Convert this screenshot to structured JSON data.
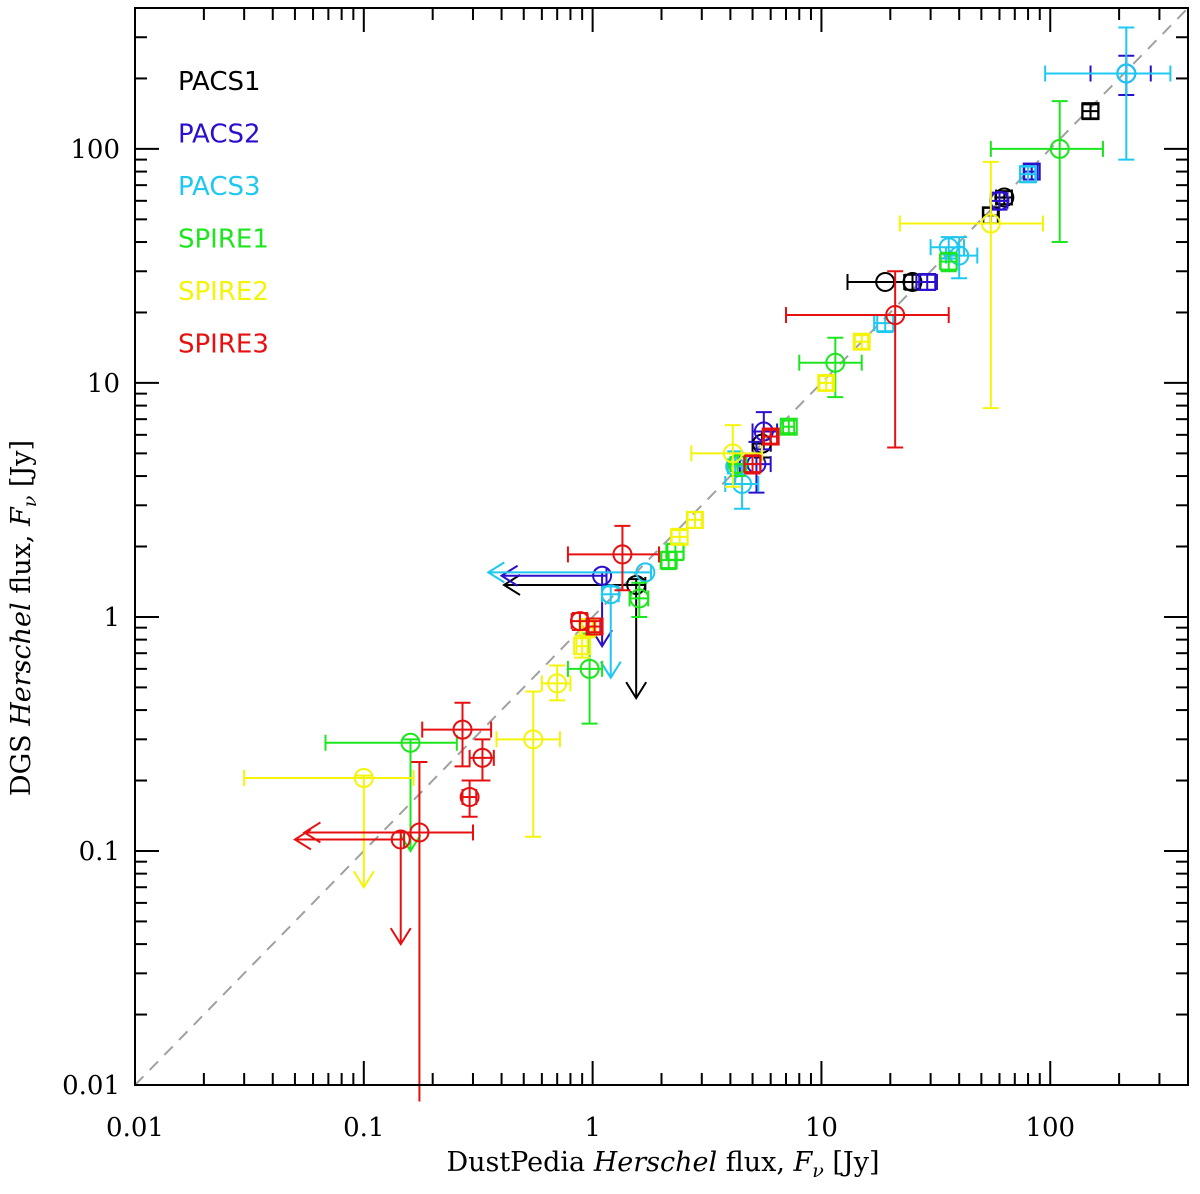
{
  "chart_data": {
    "type": "scatter",
    "xscale": "log",
    "yscale": "log",
    "xlim": [
      0.01,
      400
    ],
    "ylim": [
      0.01,
      400
    ],
    "xlabel": {
      "pre": "DustPedia ",
      "italic": "Herschel",
      "post": " flux, ",
      "symbol": "F",
      "sub": "ν",
      "unit": " [Jy]"
    },
    "ylabel": {
      "pre": "DGS ",
      "italic": "Herschel",
      "post": " flux, ",
      "symbol": "F",
      "sub": "ν",
      "unit": " [Jy]"
    },
    "x_ticks": [
      {
        "v": 0.01,
        "label": "0.01"
      },
      {
        "v": 0.1,
        "label": "0.1"
      },
      {
        "v": 1,
        "label": "1"
      },
      {
        "v": 10,
        "label": "10"
      },
      {
        "v": 100,
        "label": "100"
      }
    ],
    "y_ticks": [
      {
        "v": 0.01,
        "label": "0.01"
      },
      {
        "v": 0.1,
        "label": "0.1"
      },
      {
        "v": 1,
        "label": "1"
      },
      {
        "v": 10,
        "label": "10"
      },
      {
        "v": 100,
        "label": "100"
      }
    ],
    "one_to_one_line": {
      "color": "#a0a0a0",
      "style": "dashed"
    },
    "legend_position": "top-left",
    "series": [
      {
        "name": "PACS1",
        "color": "#000000",
        "points": [
          {
            "x": 150,
            "y": 145,
            "m": "s",
            "xe": [
              138,
              162
            ],
            "ye": [
              135,
              155
            ]
          },
          {
            "x": 63,
            "y": 62,
            "m": "c",
            "xe": [
              58,
              68
            ],
            "ye": [
              58,
              66
            ]
          },
          {
            "x": 55,
            "y": 52,
            "m": "s",
            "xe": [
              51,
              59
            ],
            "ye": [
              48,
              56
            ]
          },
          {
            "x": 25,
            "y": 27,
            "m": "c",
            "xe": [
              23,
              27
            ],
            "ye": [
              25,
              29
            ]
          },
          {
            "x": 19,
            "y": 27,
            "m": "c",
            "xe": [
              13,
              25
            ]
          },
          {
            "x": 1.55,
            "y": 1.37,
            "m": "c",
            "xe": [
              0.41,
              1.7
            ],
            "xul": true,
            "yul": true,
            "ye": [
              0.45,
              1.45
            ]
          },
          {
            "x": 5.5,
            "y": 5.5,
            "m": "c",
            "xe": [
              5,
              6
            ],
            "ye": [
              4.8,
              6.2
            ]
          }
        ]
      },
      {
        "name": "PACS2",
        "color": "#2a10cc",
        "points": [
          {
            "x": 215,
            "y": 210,
            "m": "c",
            "xe": [
              150,
              275
            ],
            "ye": [
              170,
              250
            ]
          },
          {
            "x": 83,
            "y": 80,
            "m": "s",
            "xe": [
              77,
              88
            ],
            "ye": [
              74,
              86
            ]
          },
          {
            "x": 60,
            "y": 60,
            "m": "c",
            "xe": [
              55,
              65
            ],
            "ye": [
              55,
              65
            ]
          },
          {
            "x": 29,
            "y": 27,
            "m": "s",
            "xe": [
              26,
              32
            ],
            "ye": [
              25,
              29
            ]
          },
          {
            "x": 1.1,
            "y": 1.5,
            "m": "c",
            "xe": [
              0.4,
              1.15
            ],
            "xul": true,
            "yul": true,
            "ye": [
              0.75,
              1.55
            ]
          },
          {
            "x": 5.6,
            "y": 6.2,
            "m": "c",
            "xe": [
              5,
              6.4
            ],
            "ye": [
              5.2,
              7.5
            ]
          },
          {
            "x": 5.2,
            "y": 4.5,
            "m": "c",
            "xe": [
              4.4,
              6
            ],
            "ye": [
              3.4,
              5.6
            ]
          }
        ]
      },
      {
        "name": "PACS3",
        "color": "#1ec8f0",
        "points": [
          {
            "x": 215,
            "y": 210,
            "m": "c",
            "xe": [
              95,
              335
            ],
            "ye": [
              90,
              330
            ]
          },
          {
            "x": 80,
            "y": 78,
            "m": "s",
            "xe": [
              74,
              86
            ],
            "ye": [
              72,
              84
            ]
          },
          {
            "x": 36,
            "y": 38,
            "m": "c",
            "xe": [
              30,
              42
            ],
            "ye": [
              34,
              42
            ]
          },
          {
            "x": 40,
            "y": 35,
            "m": "c",
            "xe": [
              35,
              48
            ],
            "ye": [
              28,
              42
            ]
          },
          {
            "x": 19,
            "y": 18,
            "m": "s",
            "xe": [
              17,
              21
            ],
            "ye": [
              16.5,
              19.5
            ]
          },
          {
            "x": 1.7,
            "y": 1.55,
            "m": "c",
            "xe": [
              0.35,
              1.8
            ],
            "xul": true
          },
          {
            "x": 1.2,
            "y": 1.25,
            "m": "c",
            "xe": [
              1.1,
              1.3
            ],
            "yul": true,
            "ye": [
              0.55,
              1.35
            ]
          },
          {
            "x": 4.5,
            "y": 3.7,
            "m": "c",
            "xe": [
              3.8,
              5.3
            ],
            "ye": [
              2.9,
              4.5
            ]
          },
          {
            "x": 4.2,
            "y": 4.4,
            "m": "c",
            "xe": [
              3.9,
              4.6
            ],
            "ye": [
              3.7,
              5.1
            ]
          }
        ]
      },
      {
        "name": "SPIRE1",
        "color": "#1ee61e",
        "points": [
          {
            "x": 110,
            "y": 100,
            "m": "c",
            "xe": [
              55,
              170
            ],
            "ye": [
              40,
              160
            ]
          },
          {
            "x": 36,
            "y": 33,
            "m": "s",
            "xe": [
              33,
              39
            ],
            "ye": [
              30,
              36
            ]
          },
          {
            "x": 11.5,
            "y": 12.2,
            "m": "c",
            "xe": [
              8,
              15
            ],
            "ye": [
              8.7,
              15.6
            ]
          },
          {
            "x": 7.2,
            "y": 6.5,
            "m": "s",
            "xe": [
              6.8,
              7.6
            ],
            "ye": [
              6.1,
              6.9
            ]
          },
          {
            "x": 2.3,
            "y": 1.9,
            "m": "s",
            "xe": [
              2.1,
              2.5
            ],
            "ye": [
              1.75,
              2.05
            ]
          },
          {
            "x": 2.15,
            "y": 1.75,
            "m": "s",
            "xe": [
              2,
              2.3
            ],
            "ye": [
              1.6,
              1.9
            ]
          },
          {
            "x": 1.6,
            "y": 1.2,
            "m": "c",
            "xe": [
              1.45,
              1.75
            ],
            "ye": [
              1,
              1.4
            ]
          },
          {
            "x": 0.97,
            "y": 0.6,
            "m": "c",
            "xe": [
              0.78,
              1.1
            ],
            "ye": [
              0.35,
              0.85
            ]
          },
          {
            "x": 0.16,
            "y": 0.29,
            "m": "c",
            "xe": [
              0.068,
              0.255
            ],
            "yul": true,
            "ye": [
              0.1,
              0.3
            ]
          },
          {
            "x": 4.3,
            "y": 4.5,
            "m": "c",
            "xe": [
              4,
              4.7
            ],
            "ye": [
              4,
              5
            ]
          }
        ]
      },
      {
        "name": "SPIRE2",
        "color": "#f4f40a",
        "points": [
          {
            "x": 55,
            "y": 48,
            "m": "c",
            "xe": [
              22,
              93
            ],
            "ye": [
              7.8,
              88
            ]
          },
          {
            "x": 15,
            "y": 15,
            "m": "s",
            "xe": [
              14,
              16
            ],
            "ye": [
              14,
              16
            ]
          },
          {
            "x": 10.5,
            "y": 10,
            "m": "s",
            "xe": [
              9.8,
              11.2
            ],
            "ye": [
              9.3,
              10.7
            ]
          },
          {
            "x": 2.8,
            "y": 2.6,
            "m": "s",
            "xe": [
              2.6,
              3
            ],
            "ye": [
              2.4,
              2.8
            ]
          },
          {
            "x": 2.4,
            "y": 2.2,
            "m": "s",
            "xe": [
              2.2,
              2.6
            ],
            "ye": [
              2.05,
              2.35
            ]
          },
          {
            "x": 4.1,
            "y": 5,
            "m": "c",
            "xe": [
              2.7,
              5.5
            ],
            "ye": [
              3.6,
              6.6
            ]
          },
          {
            "x": 0.9,
            "y": 0.75,
            "m": "s",
            "xe": [
              0.85,
              0.95
            ],
            "ye": [
              0.67,
              0.83
            ]
          },
          {
            "x": 0.95,
            "y": 0.9,
            "m": "s",
            "xe": [
              0.9,
              1
            ],
            "ye": [
              0.82,
              0.98
            ]
          },
          {
            "x": 0.7,
            "y": 0.52,
            "m": "c",
            "xe": [
              0.6,
              0.8
            ],
            "ye": [
              0.44,
              0.62
            ]
          },
          {
            "x": 0.55,
            "y": 0.3,
            "m": "c",
            "xe": [
              0.38,
              0.72
            ],
            "ye": [
              0.115,
              0.48
            ]
          },
          {
            "x": 0.1,
            "y": 0.205,
            "m": "c",
            "xe": [
              0.03,
              0.165
            ],
            "yul": true,
            "ye": [
              0.07,
              0.21
            ]
          }
        ]
      },
      {
        "name": "SPIRE3",
        "color": "#e61010",
        "points": [
          {
            "x": 21,
            "y": 19.5,
            "m": "c",
            "xe": [
              7,
              36
            ],
            "ye": [
              5.3,
              30
            ]
          },
          {
            "x": 6,
            "y": 5.9,
            "m": "s",
            "xe": [
              5.6,
              6.4
            ],
            "ye": [
              5.5,
              6.3
            ]
          },
          {
            "x": 5,
            "y": 4.5,
            "m": "s",
            "xe": [
              4.6,
              5.4
            ],
            "ye": [
              4.1,
              4.9
            ]
          },
          {
            "x": 1.35,
            "y": 1.85,
            "m": "c",
            "xe": [
              0.78,
              1.95
            ],
            "ye": [
              1.3,
              2.45
            ]
          },
          {
            "x": 1.02,
            "y": 0.91,
            "m": "s",
            "xe": [
              0.96,
              1.08
            ],
            "ye": [
              0.86,
              0.96
            ]
          },
          {
            "x": 0.88,
            "y": 0.96,
            "m": "c",
            "xe": [
              0.81,
              0.95
            ],
            "ye": [
              0.88,
              1.04
            ]
          },
          {
            "x": 0.27,
            "y": 0.33,
            "m": "c",
            "xe": [
              0.18,
              0.36
            ],
            "ye": [
              0.23,
              0.43
            ]
          },
          {
            "x": 0.33,
            "y": 0.25,
            "m": "c",
            "xe": [
              0.29,
              0.37
            ],
            "ye": [
              0.2,
              0.3
            ]
          },
          {
            "x": 0.29,
            "y": 0.17,
            "m": "c",
            "xe": [
              0.27,
              0.31
            ],
            "ye": [
              0.14,
              0.2
            ]
          },
          {
            "x": 0.175,
            "y": 0.12,
            "m": "c",
            "xe": [
              0.055,
              0.3
            ],
            "xul": true,
            "ye": [
              0.0085,
              0.24
            ]
          },
          {
            "x": 0.145,
            "y": 0.112,
            "m": "c",
            "xe": [
              0.05,
              0.15
            ],
            "xul": true,
            "yul": true,
            "ye": [
              0.04,
              0.12
            ]
          }
        ]
      }
    ]
  }
}
